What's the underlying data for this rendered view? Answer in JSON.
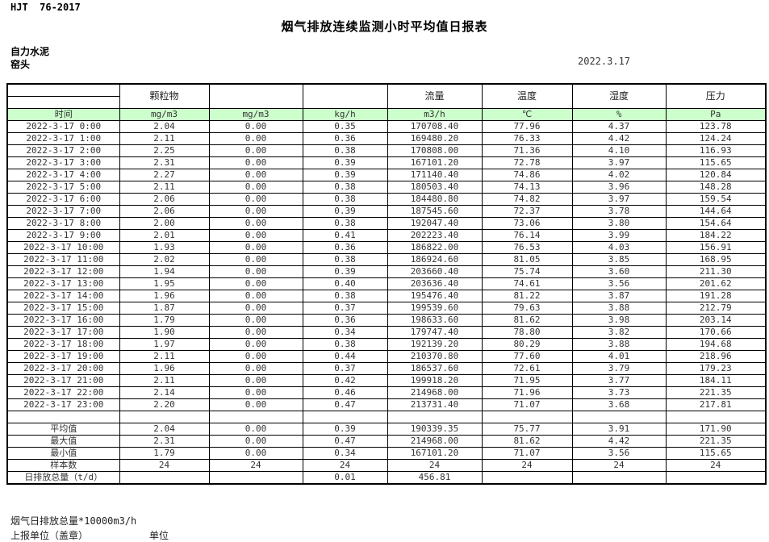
{
  "page": {
    "standard": "HJT  76-2017",
    "title": "烟气排放连续监测小时平均值日报表",
    "company": "自力水泥",
    "station": "窑头",
    "date": "2022.3.17"
  },
  "colors": {
    "unit_row_green": "#ccffcc",
    "border": "#000000"
  },
  "table": {
    "group_headers": [
      "",
      "颗粒物",
      "",
      "",
      "流量",
      "温度",
      "湿度",
      "压力"
    ],
    "unit_row": [
      "时间",
      "mg/m3",
      "mg/m3",
      "kg/h",
      "m3/h",
      "℃",
      "%",
      "Pa"
    ],
    "rows": [
      [
        "2022-3-17 0:00",
        "2.04",
        "0.00",
        "0.35",
        "170708.40",
        "77.96",
        "4.37",
        "123.78"
      ],
      [
        "2022-3-17 1:00",
        "2.11",
        "0.00",
        "0.36",
        "169480.20",
        "76.33",
        "4.42",
        "124.24"
      ],
      [
        "2022-3-17 2:00",
        "2.25",
        "0.00",
        "0.38",
        "170808.00",
        "71.36",
        "4.10",
        "116.93"
      ],
      [
        "2022-3-17 3:00",
        "2.31",
        "0.00",
        "0.39",
        "167101.20",
        "72.78",
        "3.97",
        "115.65"
      ],
      [
        "2022-3-17 4:00",
        "2.27",
        "0.00",
        "0.39",
        "171140.40",
        "74.86",
        "4.02",
        "120.84"
      ],
      [
        "2022-3-17 5:00",
        "2.11",
        "0.00",
        "0.38",
        "180503.40",
        "74.13",
        "3.96",
        "148.28"
      ],
      [
        "2022-3-17 6:00",
        "2.06",
        "0.00",
        "0.38",
        "184480.80",
        "74.82",
        "3.97",
        "159.54"
      ],
      [
        "2022-3-17 7:00",
        "2.06",
        "0.00",
        "0.39",
        "187545.60",
        "72.37",
        "3.78",
        "144.64"
      ],
      [
        "2022-3-17 8:00",
        "2.00",
        "0.00",
        "0.38",
        "192047.40",
        "73.06",
        "3.80",
        "154.64"
      ],
      [
        "2022-3-17 9:00",
        "2.01",
        "0.00",
        "0.41",
        "202223.40",
        "76.14",
        "3.99",
        "184.22"
      ],
      [
        "2022-3-17 10:00",
        "1.93",
        "0.00",
        "0.36",
        "186822.00",
        "76.53",
        "4.03",
        "156.91"
      ],
      [
        "2022-3-17 11:00",
        "2.02",
        "0.00",
        "0.38",
        "186924.60",
        "81.05",
        "3.85",
        "168.95"
      ],
      [
        "2022-3-17 12:00",
        "1.94",
        "0.00",
        "0.39",
        "203660.40",
        "75.74",
        "3.60",
        "211.30"
      ],
      [
        "2022-3-17 13:00",
        "1.95",
        "0.00",
        "0.40",
        "203636.40",
        "74.61",
        "3.56",
        "201.62"
      ],
      [
        "2022-3-17 14:00",
        "1.96",
        "0.00",
        "0.38",
        "195476.40",
        "81.22",
        "3.87",
        "191.28"
      ],
      [
        "2022-3-17 15:00",
        "1.87",
        "0.00",
        "0.37",
        "199539.60",
        "79.63",
        "3.88",
        "212.79"
      ],
      [
        "2022-3-17 16:00",
        "1.79",
        "0.00",
        "0.36",
        "198633.60",
        "81.62",
        "3.98",
        "203.14"
      ],
      [
        "2022-3-17 17:00",
        "1.90",
        "0.00",
        "0.34",
        "179747.40",
        "78.80",
        "3.82",
        "170.66"
      ],
      [
        "2022-3-17 18:00",
        "1.97",
        "0.00",
        "0.38",
        "192139.20",
        "80.29",
        "3.88",
        "194.68"
      ],
      [
        "2022-3-17 19:00",
        "2.11",
        "0.00",
        "0.44",
        "210370.80",
        "77.60",
        "4.01",
        "218.96"
      ],
      [
        "2022-3-17 20:00",
        "1.96",
        "0.00",
        "0.37",
        "186537.60",
        "72.61",
        "3.79",
        "179.23"
      ],
      [
        "2022-3-17 21:00",
        "2.11",
        "0.00",
        "0.42",
        "199918.20",
        "71.95",
        "3.77",
        "184.11"
      ],
      [
        "2022-3-17 22:00",
        "2.14",
        "0.00",
        "0.46",
        "214968.00",
        "71.96",
        "3.73",
        "221.35"
      ],
      [
        "2022-3-17 23:00",
        "2.20",
        "0.00",
        "0.47",
        "213731.40",
        "71.07",
        "3.68",
        "217.81"
      ]
    ],
    "summary": [
      [
        "平均值",
        "2.04",
        "0.00",
        "0.39",
        "190339.35",
        "75.77",
        "3.91",
        "171.90"
      ],
      [
        "最大值",
        "2.31",
        "0.00",
        "0.47",
        "214968.00",
        "81.62",
        "4.42",
        "221.35"
      ],
      [
        "最小值",
        "1.79",
        "0.00",
        "0.34",
        "167101.20",
        "71.07",
        "3.56",
        "115.65"
      ],
      [
        "样本数",
        "24",
        "24",
        "24",
        "24",
        "24",
        "24",
        "24"
      ],
      [
        "日排放总量（t/d）",
        "",
        "",
        "0.01",
        "456.81",
        "",
        "",
        ""
      ]
    ]
  },
  "footer": {
    "note": "烟气日排放总量*10000m3/h",
    "report_unit": "上报单位（盖章）",
    "unit_label": "单位"
  }
}
